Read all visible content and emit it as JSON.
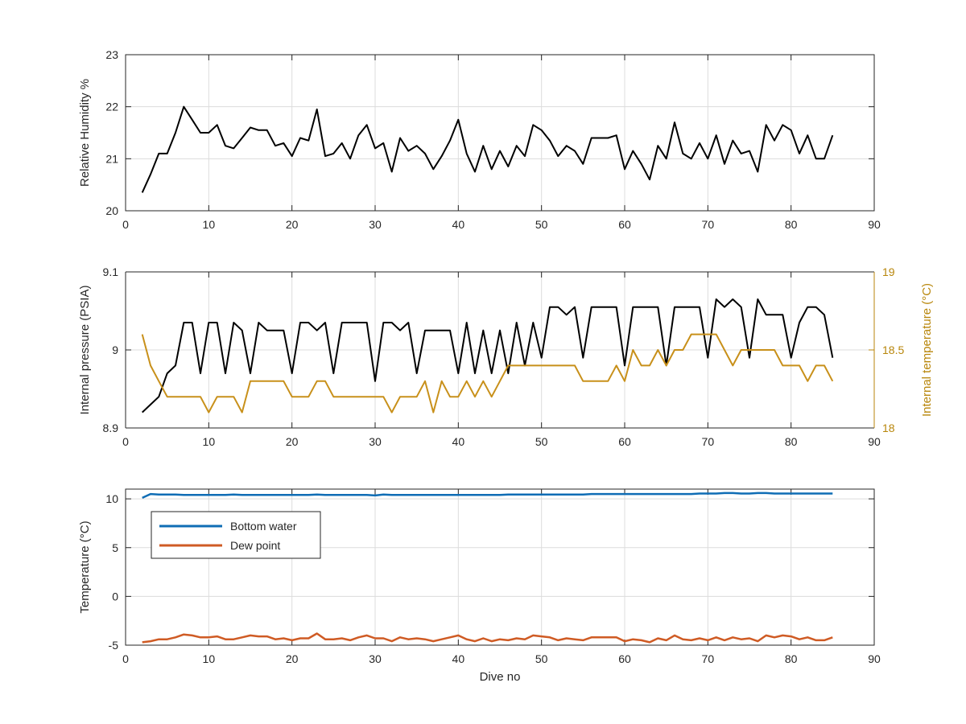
{
  "chart_data": [
    {
      "type": "line",
      "title": "",
      "xlabel": "",
      "ylabel": "Relative Humidity %",
      "xlim": [
        0,
        90
      ],
      "ylim": [
        20,
        23
      ],
      "xticks": [
        "0",
        "10",
        "20",
        "30",
        "40",
        "50",
        "60",
        "70",
        "80",
        "90"
      ],
      "yticks": [
        "20",
        "21",
        "22",
        "23"
      ],
      "grid": true,
      "series": [
        {
          "color": "#000000",
          "x": [
            2,
            3,
            4,
            5,
            6,
            7,
            8,
            9,
            10,
            11,
            12,
            13,
            14,
            15,
            16,
            17,
            18,
            19,
            20,
            21,
            22,
            23,
            24,
            25,
            26,
            27,
            28,
            29,
            30,
            31,
            32,
            33,
            34,
            35,
            36,
            37,
            38,
            39,
            40,
            41,
            42,
            43,
            44,
            45,
            46,
            47,
            48,
            49,
            50,
            51,
            52,
            53,
            54,
            55,
            56,
            57,
            58,
            59,
            60,
            61,
            62,
            63,
            64,
            65,
            66,
            67,
            68,
            69,
            70,
            71,
            72,
            73,
            74,
            75,
            76,
            77,
            78,
            79,
            80,
            81,
            82,
            83,
            84,
            85
          ],
          "values": [
            20.35,
            20.7,
            21.1,
            21.1,
            21.5,
            22.0,
            21.75,
            21.5,
            21.5,
            21.65,
            21.25,
            21.2,
            21.4,
            21.6,
            21.55,
            21.55,
            21.25,
            21.3,
            21.05,
            21.4,
            21.35,
            21.95,
            21.05,
            21.1,
            21.3,
            21.0,
            21.45,
            21.65,
            21.2,
            21.3,
            20.75,
            21.4,
            21.15,
            21.25,
            21.1,
            20.8,
            21.05,
            21.35,
            21.75,
            21.1,
            20.75,
            21.25,
            20.8,
            21.15,
            20.85,
            21.25,
            21.05,
            21.65,
            21.55,
            21.35,
            21.05,
            21.25,
            21.15,
            20.9,
            21.4,
            21.4,
            21.4,
            21.45,
            20.8,
            21.15,
            20.9,
            20.6,
            21.25,
            21.0,
            21.7,
            21.1,
            21.0,
            21.3,
            21.0,
            21.45,
            20.9,
            21.35,
            21.1,
            21.15,
            20.75,
            21.65,
            21.35,
            21.65,
            21.55,
            21.1,
            21.45,
            21.0,
            21.0,
            21.45
          ]
        }
      ]
    },
    {
      "type": "line",
      "title": "",
      "xlabel": "",
      "ylabel": "Internal pressure (PSIA)",
      "ylabel_right": "Internal temperature (°C)",
      "xlim": [
        0,
        90
      ],
      "ylim": [
        8.9,
        9.1
      ],
      "ylim_right": [
        18,
        19
      ],
      "xticks": [
        "0",
        "10",
        "20",
        "30",
        "40",
        "50",
        "60",
        "70",
        "80",
        "90"
      ],
      "yticks": [
        "8.9",
        "9",
        "9.1"
      ],
      "yticks_right": [
        "18",
        "18.5",
        "19"
      ],
      "grid": true,
      "right_axis_color": "#b8860b",
      "series": [
        {
          "color": "#000000",
          "axis": "left",
          "x": [
            2,
            3,
            4,
            5,
            6,
            7,
            8,
            9,
            10,
            11,
            12,
            13,
            14,
            15,
            16,
            17,
            18,
            19,
            20,
            21,
            22,
            23,
            24,
            25,
            26,
            27,
            28,
            29,
            30,
            31,
            32,
            33,
            34,
            35,
            36,
            37,
            38,
            39,
            40,
            41,
            42,
            43,
            44,
            45,
            46,
            47,
            48,
            49,
            50,
            51,
            52,
            53,
            54,
            55,
            56,
            57,
            58,
            59,
            60,
            61,
            62,
            63,
            64,
            65,
            66,
            67,
            68,
            69,
            70,
            71,
            72,
            73,
            74,
            75,
            76,
            77,
            78,
            79,
            80,
            81,
            82,
            83,
            84,
            85
          ],
          "values": [
            8.92,
            8.93,
            8.94,
            8.97,
            8.98,
            9.035,
            9.035,
            8.97,
            9.035,
            9.035,
            8.97,
            9.035,
            9.025,
            8.97,
            9.035,
            9.025,
            9.025,
            9.025,
            8.97,
            9.035,
            9.035,
            9.025,
            9.035,
            8.97,
            9.035,
            9.035,
            9.035,
            9.035,
            8.96,
            9.035,
            9.035,
            9.025,
            9.035,
            8.97,
            9.025,
            9.025,
            9.025,
            9.025,
            8.97,
            9.035,
            8.97,
            9.025,
            8.97,
            9.025,
            8.97,
            9.035,
            8.98,
            9.035,
            8.99,
            9.055,
            9.055,
            9.045,
            9.055,
            8.99,
            9.055,
            9.055,
            9.055,
            9.055,
            8.98,
            9.055,
            9.055,
            9.055,
            9.055,
            8.98,
            9.055,
            9.055,
            9.055,
            9.055,
            8.99,
            9.065,
            9.055,
            9.065,
            9.055,
            8.99,
            9.065,
            9.045,
            9.045,
            9.045,
            8.99,
            9.035,
            9.055,
            9.055,
            9.045,
            8.99
          ]
        },
        {
          "color": "#c8901a",
          "axis": "right",
          "x": [
            2,
            3,
            4,
            5,
            6,
            7,
            8,
            9,
            10,
            11,
            12,
            13,
            14,
            15,
            16,
            17,
            18,
            19,
            20,
            21,
            22,
            23,
            24,
            25,
            26,
            27,
            28,
            29,
            30,
            31,
            32,
            33,
            34,
            35,
            36,
            37,
            38,
            39,
            40,
            41,
            42,
            43,
            44,
            45,
            46,
            47,
            48,
            49,
            50,
            51,
            52,
            53,
            54,
            55,
            56,
            57,
            58,
            59,
            60,
            61,
            62,
            63,
            64,
            65,
            66,
            67,
            68,
            69,
            70,
            71,
            72,
            73,
            74,
            75,
            76,
            77,
            78,
            79,
            80,
            81,
            82,
            83,
            84,
            85
          ],
          "values": [
            18.6,
            18.4,
            18.3,
            18.2,
            18.2,
            18.2,
            18.2,
            18.2,
            18.1,
            18.2,
            18.2,
            18.2,
            18.1,
            18.3,
            18.3,
            18.3,
            18.3,
            18.3,
            18.2,
            18.2,
            18.2,
            18.3,
            18.3,
            18.2,
            18.2,
            18.2,
            18.2,
            18.2,
            18.2,
            18.2,
            18.1,
            18.2,
            18.2,
            18.2,
            18.3,
            18.1,
            18.3,
            18.2,
            18.2,
            18.3,
            18.2,
            18.3,
            18.2,
            18.3,
            18.4,
            18.4,
            18.4,
            18.4,
            18.4,
            18.4,
            18.4,
            18.4,
            18.4,
            18.3,
            18.3,
            18.3,
            18.3,
            18.4,
            18.3,
            18.5,
            18.4,
            18.4,
            18.5,
            18.4,
            18.5,
            18.5,
            18.6,
            18.6,
            18.6,
            18.6,
            18.5,
            18.4,
            18.5,
            18.5,
            18.5,
            18.5,
            18.5,
            18.4,
            18.4,
            18.4,
            18.3,
            18.4,
            18.4,
            18.3
          ]
        }
      ]
    },
    {
      "type": "line",
      "title": "",
      "xlabel": "Dive no",
      "ylabel": "Temperature (°C)",
      "xlim": [
        0,
        90
      ],
      "ylim": [
        -5,
        11
      ],
      "xticks": [
        "0",
        "10",
        "20",
        "30",
        "40",
        "50",
        "60",
        "70",
        "80",
        "90"
      ],
      "yticks": [
        "-5",
        "0",
        "5",
        "10"
      ],
      "grid": true,
      "legend_position": "top-left",
      "series": [
        {
          "name": "Bottom water",
          "color": "#0f6db5",
          "x": [
            2,
            3,
            4,
            5,
            6,
            7,
            8,
            9,
            10,
            11,
            12,
            13,
            14,
            15,
            16,
            17,
            18,
            19,
            20,
            21,
            22,
            23,
            24,
            25,
            26,
            27,
            28,
            29,
            30,
            31,
            32,
            33,
            34,
            35,
            36,
            37,
            38,
            39,
            40,
            41,
            42,
            43,
            44,
            45,
            46,
            47,
            48,
            49,
            50,
            51,
            52,
            53,
            54,
            55,
            56,
            57,
            58,
            59,
            60,
            61,
            62,
            63,
            64,
            65,
            66,
            67,
            68,
            69,
            70,
            71,
            72,
            73,
            74,
            75,
            76,
            77,
            78,
            79,
            80,
            81,
            82,
            83,
            84,
            85
          ],
          "values": [
            10.1,
            10.5,
            10.45,
            10.45,
            10.45,
            10.4,
            10.4,
            10.4,
            10.4,
            10.4,
            10.4,
            10.45,
            10.4,
            10.4,
            10.4,
            10.4,
            10.4,
            10.4,
            10.4,
            10.4,
            10.4,
            10.45,
            10.4,
            10.4,
            10.4,
            10.4,
            10.4,
            10.4,
            10.35,
            10.45,
            10.4,
            10.4,
            10.4,
            10.4,
            10.4,
            10.4,
            10.4,
            10.4,
            10.4,
            10.4,
            10.4,
            10.4,
            10.4,
            10.4,
            10.45,
            10.45,
            10.45,
            10.45,
            10.45,
            10.45,
            10.45,
            10.45,
            10.45,
            10.45,
            10.5,
            10.5,
            10.5,
            10.5,
            10.5,
            10.5,
            10.5,
            10.5,
            10.5,
            10.5,
            10.5,
            10.5,
            10.5,
            10.55,
            10.55,
            10.55,
            10.6,
            10.6,
            10.55,
            10.55,
            10.6,
            10.6,
            10.55,
            10.55,
            10.55,
            10.55,
            10.55,
            10.55,
            10.55,
            10.55
          ]
        },
        {
          "name": "Dew point",
          "color": "#cf5b24",
          "x": [
            2,
            3,
            4,
            5,
            6,
            7,
            8,
            9,
            10,
            11,
            12,
            13,
            14,
            15,
            16,
            17,
            18,
            19,
            20,
            21,
            22,
            23,
            24,
            25,
            26,
            27,
            28,
            29,
            30,
            31,
            32,
            33,
            34,
            35,
            36,
            37,
            38,
            39,
            40,
            41,
            42,
            43,
            44,
            45,
            46,
            47,
            48,
            49,
            50,
            51,
            52,
            53,
            54,
            55,
            56,
            57,
            58,
            59,
            60,
            61,
            62,
            63,
            64,
            65,
            66,
            67,
            68,
            69,
            70,
            71,
            72,
            73,
            74,
            75,
            76,
            77,
            78,
            79,
            80,
            81,
            82,
            83,
            84,
            85
          ],
          "values": [
            -4.7,
            -4.6,
            -4.4,
            -4.4,
            -4.2,
            -3.9,
            -4.0,
            -4.2,
            -4.2,
            -4.1,
            -4.4,
            -4.4,
            -4.2,
            -4.0,
            -4.1,
            -4.1,
            -4.4,
            -4.3,
            -4.5,
            -4.3,
            -4.3,
            -3.8,
            -4.4,
            -4.4,
            -4.3,
            -4.5,
            -4.2,
            -4.0,
            -4.3,
            -4.3,
            -4.6,
            -4.2,
            -4.4,
            -4.3,
            -4.4,
            -4.6,
            -4.4,
            -4.2,
            -4.0,
            -4.4,
            -4.6,
            -4.3,
            -4.6,
            -4.4,
            -4.5,
            -4.3,
            -4.4,
            -4.0,
            -4.1,
            -4.2,
            -4.5,
            -4.3,
            -4.4,
            -4.5,
            -4.2,
            -4.2,
            -4.2,
            -4.2,
            -4.6,
            -4.4,
            -4.5,
            -4.7,
            -4.3,
            -4.5,
            -4.0,
            -4.4,
            -4.5,
            -4.3,
            -4.5,
            -4.2,
            -4.5,
            -4.2,
            -4.4,
            -4.3,
            -4.6,
            -4.0,
            -4.2,
            -4.0,
            -4.1,
            -4.4,
            -4.2,
            -4.5,
            -4.5,
            -4.2
          ]
        }
      ]
    }
  ]
}
